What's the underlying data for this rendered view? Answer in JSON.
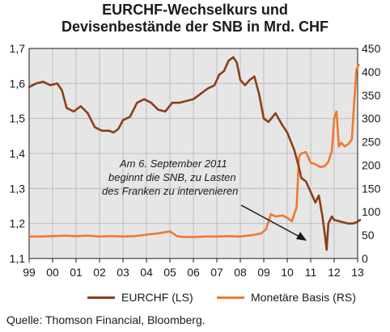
{
  "title_line1": "EURCHF-Wechselkurs und",
  "title_line2": "Devisenbestände der SNB in Mrd. CHF",
  "source": "Quelle: Thomson Financial, Bloomberg.",
  "annotation": [
    "Am 6. September 2011",
    "beginnt die SNB, zu Lasten",
    "des Franken zu intervenieren"
  ],
  "colors": {
    "eurchf": "#8a3f1a",
    "basis": "#ee7a2e",
    "grid": "#bdbdbd",
    "panel": "#e6e6e6"
  },
  "chart_data": {
    "type": "line",
    "x_ticks": [
      "99",
      "00",
      "01",
      "02",
      "03",
      "04",
      "05",
      "06",
      "07",
      "08",
      "09",
      "10",
      "11",
      "12",
      "13"
    ],
    "x_range": [
      1999,
      2013
    ],
    "y_left_ticks": [
      "1,7",
      "1,6",
      "1,5",
      "1,4",
      "1,3",
      "1,2",
      "1,1"
    ],
    "y_left_range": [
      1.1,
      1.7
    ],
    "y_right_ticks": [
      "450",
      "400",
      "350",
      "300",
      "250",
      "200",
      "150",
      "100",
      "50",
      "0"
    ],
    "y_right_range": [
      0,
      450
    ],
    "grid": true,
    "legend_position": "bottom",
    "series": [
      {
        "name": "EURCHF (LS)",
        "axis": "left",
        "x": [
          1999.0,
          1999.3,
          1999.6,
          1999.9,
          2000.2,
          2000.4,
          2000.6,
          2000.9,
          2001.2,
          2001.5,
          2001.8,
          2002.1,
          2002.4,
          2002.6,
          2002.8,
          2003.0,
          2003.3,
          2003.6,
          2003.9,
          2004.2,
          2004.5,
          2004.8,
          2005.1,
          2005.4,
          2005.7,
          2006.0,
          2006.3,
          2006.6,
          2006.9,
          2007.1,
          2007.3,
          2007.5,
          2007.7,
          2007.85,
          2008.0,
          2008.2,
          2008.4,
          2008.6,
          2008.8,
          2009.0,
          2009.2,
          2009.5,
          2009.8,
          2010.0,
          2010.3,
          2010.5,
          2010.6,
          2010.8,
          2011.0,
          2011.2,
          2011.35,
          2011.5,
          2011.6,
          2011.68,
          2011.75,
          2011.9,
          2012.0,
          2012.3,
          2012.6,
          2012.8,
          2013.0,
          2013.1
        ],
        "y": [
          1.59,
          1.6,
          1.605,
          1.595,
          1.6,
          1.58,
          1.53,
          1.52,
          1.535,
          1.515,
          1.475,
          1.465,
          1.465,
          1.46,
          1.47,
          1.495,
          1.505,
          1.545,
          1.555,
          1.545,
          1.525,
          1.52,
          1.545,
          1.545,
          1.55,
          1.555,
          1.57,
          1.585,
          1.595,
          1.625,
          1.635,
          1.665,
          1.675,
          1.66,
          1.61,
          1.595,
          1.61,
          1.62,
          1.57,
          1.5,
          1.49,
          1.515,
          1.48,
          1.46,
          1.41,
          1.36,
          1.33,
          1.32,
          1.29,
          1.26,
          1.28,
          1.22,
          1.17,
          1.125,
          1.2,
          1.22,
          1.21,
          1.205,
          1.2,
          1.2,
          1.205,
          1.21
        ]
      },
      {
        "name": "Monetäre Basis (RS)",
        "axis": "right",
        "x": [
          1999.0,
          1999.5,
          2000.0,
          2000.5,
          2001.0,
          2001.5,
          2002.0,
          2002.5,
          2003.0,
          2003.5,
          2004.0,
          2004.5,
          2005.0,
          2005.3,
          2005.6,
          2006.0,
          2006.5,
          2007.0,
          2007.5,
          2008.0,
          2008.5,
          2008.9,
          2009.1,
          2009.3,
          2009.5,
          2009.8,
          2010.0,
          2010.2,
          2010.4,
          2010.5,
          2010.6,
          2010.8,
          2011.0,
          2011.2,
          2011.4,
          2011.6,
          2011.75,
          2011.9,
          2012.0,
          2012.1,
          2012.2,
          2012.3,
          2012.45,
          2012.6,
          2012.75,
          2012.85,
          2012.95,
          2013.05
        ],
        "y": [
          47,
          47,
          48,
          49,
          48,
          49,
          47,
          48,
          47,
          48,
          51,
          54,
          58,
          48,
          46,
          46,
          47,
          47,
          48,
          47,
          50,
          54,
          63,
          95,
          90,
          92,
          87,
          80,
          110,
          218,
          225,
          228,
          205,
          202,
          196,
          198,
          207,
          230,
          300,
          315,
          240,
          248,
          240,
          245,
          255,
          330,
          405,
          415
        ]
      }
    ]
  }
}
